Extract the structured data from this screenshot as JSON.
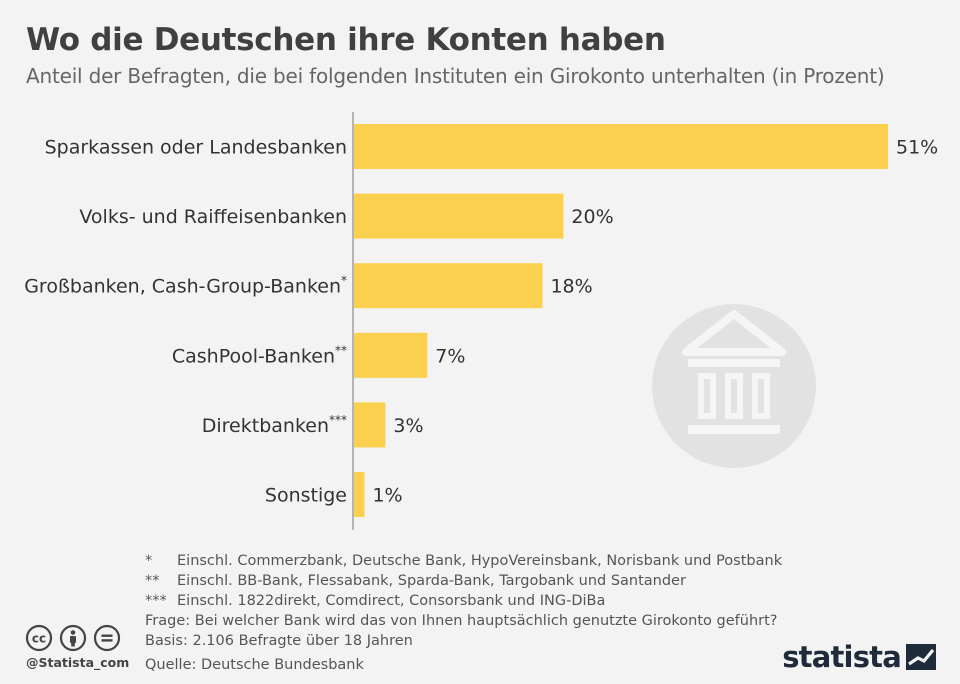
{
  "header": {
    "title": "Wo die Deutschen ihre Konten haben",
    "subtitle": "Anteil der Befragten, die bei folgenden Instituten ein Girokonto unterhalten (in Prozent)"
  },
  "chart_data": {
    "type": "bar",
    "orientation": "horizontal",
    "categories": [
      {
        "label": "Sparkassen oder Landesbanken",
        "mark": ""
      },
      {
        "label": "Volks- und Raiffeisenbanken",
        "mark": ""
      },
      {
        "label": "Großbanken, Cash-Group-Banken",
        "mark": "*"
      },
      {
        "label": "CashPool-Banken",
        "mark": "**"
      },
      {
        "label": "Direktbanken",
        "mark": "***"
      },
      {
        "label": "Sonstige",
        "mark": ""
      }
    ],
    "values": [
      51,
      20,
      18,
      7,
      3,
      1
    ],
    "value_labels": [
      "51%",
      "20%",
      "18%",
      "7%",
      "3%",
      "1%"
    ],
    "unit": "%",
    "xlim": [
      0,
      51
    ],
    "grid": false,
    "bar_color": "#fcd04f",
    "axis_color": "#b5b5b5"
  },
  "notes": {
    "footnotes": [
      {
        "mark": "*",
        "text": "Einschl. Commerzbank, Deutsche Bank, HypoVereinsbank, Norisbank und Postbank"
      },
      {
        "mark": "**",
        "text": "Einschl. BB-Bank, Flessabank, Sparda-Bank, Targobank und Santander"
      },
      {
        "mark": "***",
        "text": "Einschl. 1822direkt, Comdirect, Consorsbank und ING-DiBa"
      }
    ],
    "question": "Frage: Bei welcher Bank wird das von Ihnen hauptsächlich genutzte Girokonto geführt?",
    "basis": "Basis: 2.106 Befragte über 18 Jahren",
    "source": "Quelle: Deutsche Bundesbank"
  },
  "footer": {
    "handle": "@Statista_com",
    "logo": "statista",
    "license_icons": [
      "cc-icon",
      "attribution-icon",
      "no-derivatives-icon"
    ]
  }
}
